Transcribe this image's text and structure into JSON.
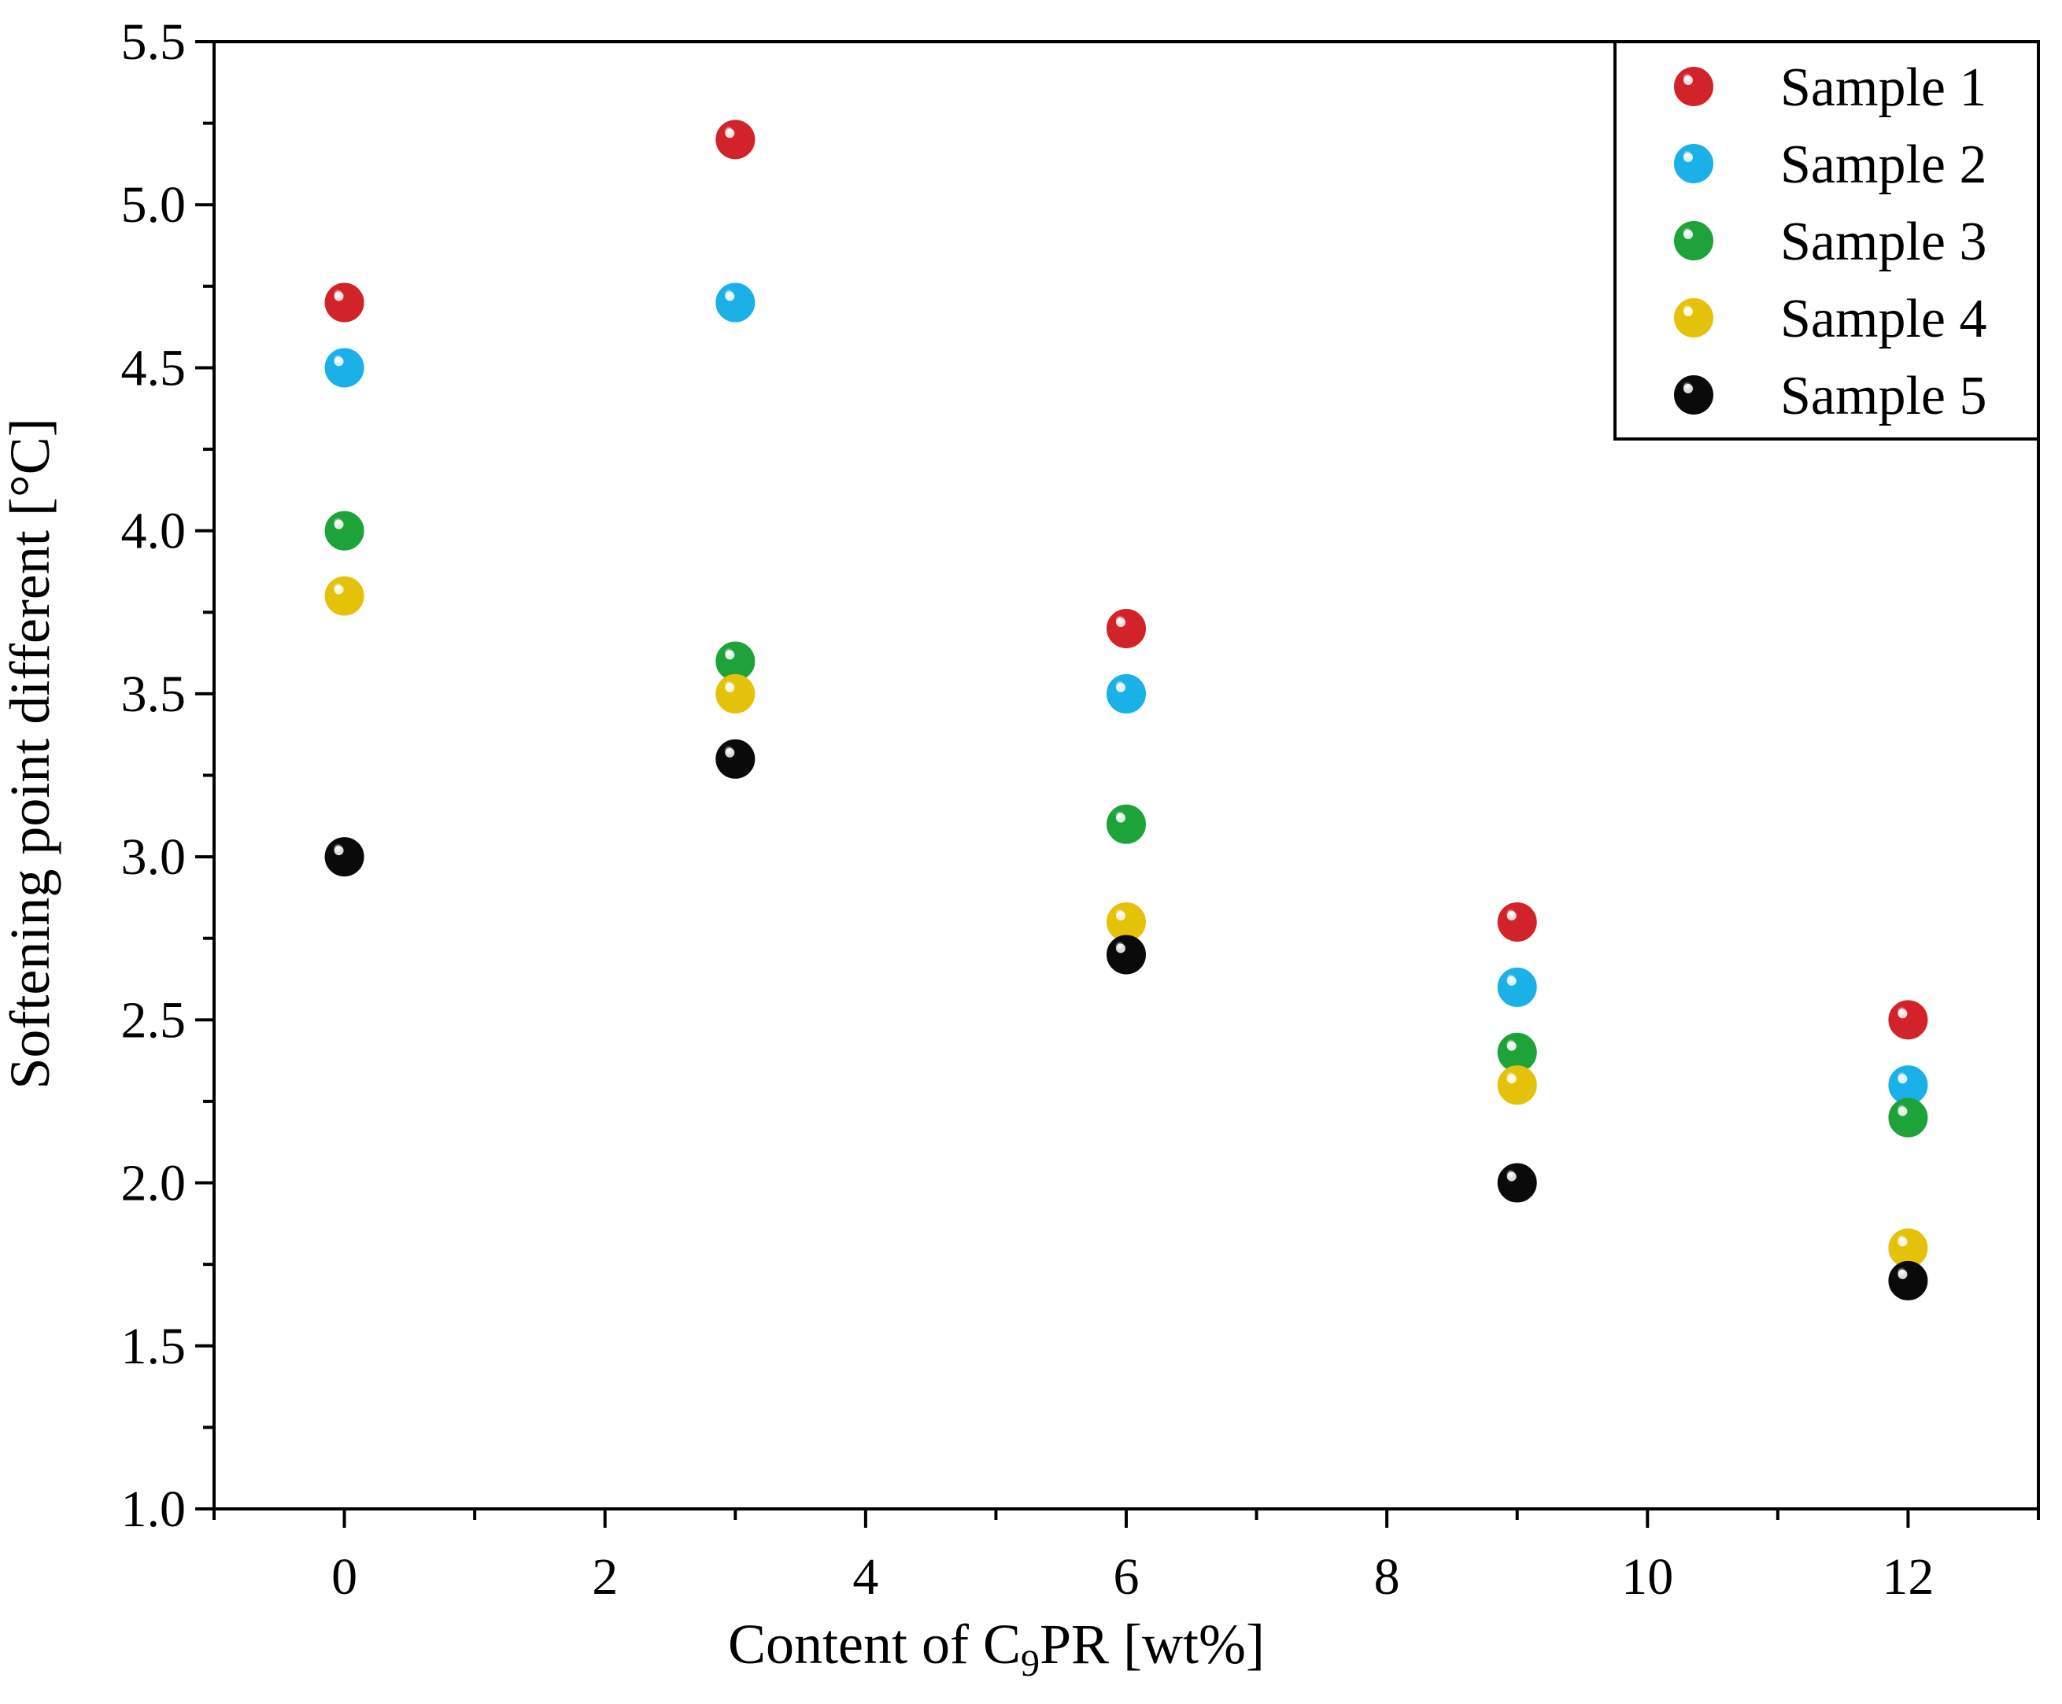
{
  "chart_data": {
    "type": "scatter",
    "title": "",
    "xlabel": {
      "prefix": "Content of C",
      "subscript": "9",
      "suffix": "PR [wt%]"
    },
    "ylabel": "Softening point different [°C]",
    "xlim": [
      -1,
      13
    ],
    "ylim": [
      1.0,
      5.5
    ],
    "x_ticks": [
      0,
      2,
      4,
      6,
      8,
      10,
      12
    ],
    "x_tick_labels": [
      "0",
      "2",
      "4",
      "6",
      "8",
      "10",
      "12"
    ],
    "x_minor_step": 1,
    "y_ticks": [
      1.0,
      1.5,
      2.0,
      2.5,
      3.0,
      3.5,
      4.0,
      4.5,
      5.0,
      5.5
    ],
    "y_tick_labels": [
      "1.0",
      "1.5",
      "2.0",
      "2.5",
      "3.0",
      "3.5",
      "4.0",
      "4.5",
      "5.0",
      "5.5"
    ],
    "y_minor_step": 0.25,
    "grid": false,
    "legend_position": "top-right",
    "x": [
      0,
      3,
      6,
      9,
      12
    ],
    "series": [
      {
        "name": "Sample 1",
        "color": "#d2232a",
        "values": [
          4.7,
          5.2,
          3.7,
          2.8,
          2.5
        ]
      },
      {
        "name": "Sample 2",
        "color": "#1ab0e8",
        "values": [
          4.5,
          4.7,
          3.5,
          2.6,
          2.3
        ]
      },
      {
        "name": "Sample 3",
        "color": "#1ea23a",
        "values": [
          4.0,
          3.6,
          3.1,
          2.4,
          2.2
        ]
      },
      {
        "name": "Sample 4",
        "color": "#e5c20a",
        "values": [
          3.8,
          3.5,
          2.8,
          2.3,
          1.8
        ]
      },
      {
        "name": "Sample 5",
        "color": "#0a0a0a",
        "values": [
          3.0,
          3.3,
          2.7,
          2.0,
          1.7
        ]
      }
    ]
  }
}
